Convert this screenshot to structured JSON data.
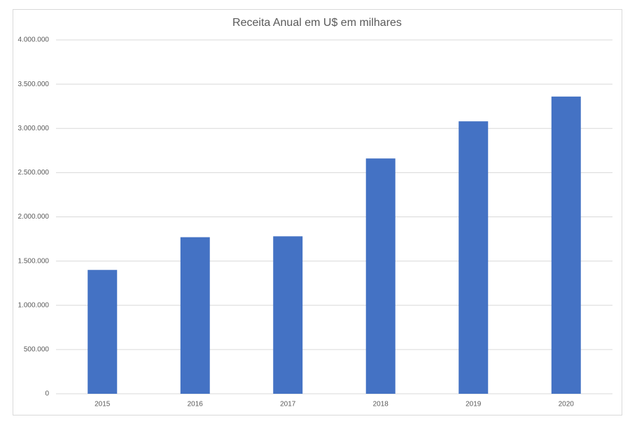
{
  "chart_data": {
    "type": "bar",
    "title": "Receita Anual em U$ em milhares",
    "categories": [
      "2015",
      "2016",
      "2017",
      "2018",
      "2019",
      "2020"
    ],
    "values": [
      1400000,
      1770000,
      1780000,
      2660000,
      3080000,
      3360000
    ],
    "color": "#4472c4",
    "ylim": [
      0,
      4000000
    ],
    "yticks": [
      0,
      {
        "value": 500000,
        "label": "500.000"
      },
      {
        "value": 1000000,
        "label": "1.000.000"
      },
      {
        "value": 1500000,
        "label": "1.500.000"
      },
      {
        "value": 2000000,
        "label": "2.000.000"
      },
      {
        "value": 2500000,
        "label": "2.500.000"
      },
      {
        "value": 3000000,
        "label": "3.000.000"
      },
      {
        "value": 3500000,
        "label": "3.500.000"
      },
      {
        "value": 4000000,
        "label": "4.000.000"
      }
    ],
    "grid": true
  }
}
